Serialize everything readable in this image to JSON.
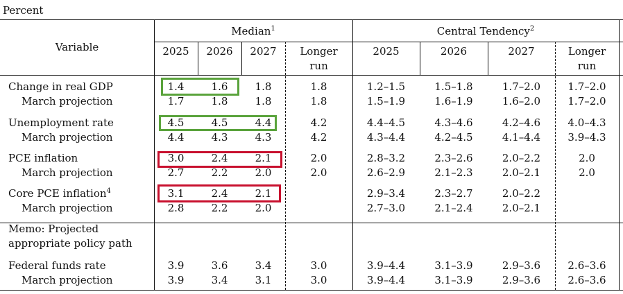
{
  "units_label": "Percent",
  "header": {
    "variable": "Variable",
    "median": "Median",
    "median_note": "1",
    "central_tendency": "Central Tendency",
    "central_tendency_note": "2",
    "years": [
      "2025",
      "2026",
      "2027"
    ],
    "longer_run_line1": "Longer",
    "longer_run_line2": "run"
  },
  "rows": [
    {
      "label": "Change in real GDP",
      "median": [
        "1.4",
        "1.6",
        "1.8",
        "1.8"
      ],
      "central": [
        "1.2–1.5",
        "1.5–1.8",
        "1.7–2.0",
        "1.7–2.0"
      ]
    },
    {
      "label": "March projection",
      "median": [
        "1.7",
        "1.8",
        "1.8",
        "1.8"
      ],
      "central": [
        "1.5–1.9",
        "1.6–1.9",
        "1.6–2.0",
        "1.7–2.0"
      ]
    },
    {
      "label": "Unemployment rate",
      "median": [
        "4.5",
        "4.5",
        "4.4",
        "4.2"
      ],
      "central": [
        "4.4–4.5",
        "4.3–4.6",
        "4.2–4.6",
        "4.0–4.3"
      ]
    },
    {
      "label": "March projection",
      "median": [
        "4.4",
        "4.3",
        "4.3",
        "4.2"
      ],
      "central": [
        "4.3–4.4",
        "4.2–4.5",
        "4.1–4.4",
        "3.9–4.3"
      ]
    },
    {
      "label": "PCE inflation",
      "median": [
        "3.0",
        "2.4",
        "2.1",
        "2.0"
      ],
      "central": [
        "2.8–3.2",
        "2.3–2.6",
        "2.0–2.2",
        "2.0"
      ]
    },
    {
      "label": "March projection",
      "median": [
        "2.7",
        "2.2",
        "2.0",
        "2.0"
      ],
      "central": [
        "2.6–2.9",
        "2.1–2.3",
        "2.0–2.1",
        "2.0"
      ]
    },
    {
      "label": "Core PCE inflation",
      "note": "4",
      "median": [
        "3.1",
        "2.4",
        "2.1",
        ""
      ],
      "central": [
        "2.9–3.4",
        "2.3–2.7",
        "2.0–2.2",
        ""
      ]
    },
    {
      "label": "March projection",
      "median": [
        "2.8",
        "2.2",
        "2.0",
        ""
      ],
      "central": [
        "2.7–3.0",
        "2.1–2.4",
        "2.0–2.1",
        ""
      ]
    },
    {
      "label": "Federal funds rate",
      "median": [
        "3.9",
        "3.6",
        "3.4",
        "3.0"
      ],
      "central": [
        "3.9–4.4",
        "3.1–3.9",
        "2.9–3.6",
        "2.6–3.6"
      ]
    },
    {
      "label": "March projection",
      "median": [
        "3.9",
        "3.4",
        "3.1",
        "3.0"
      ],
      "central": [
        "3.9–4.4",
        "3.1–3.9",
        "2.9–3.6",
        "2.6–3.6"
      ]
    }
  ],
  "memo_line1": "Memo: Projected",
  "memo_line2": "appropriate policy path",
  "highlight_colors": {
    "green": "#5aa33c",
    "red": "#c8102e"
  }
}
